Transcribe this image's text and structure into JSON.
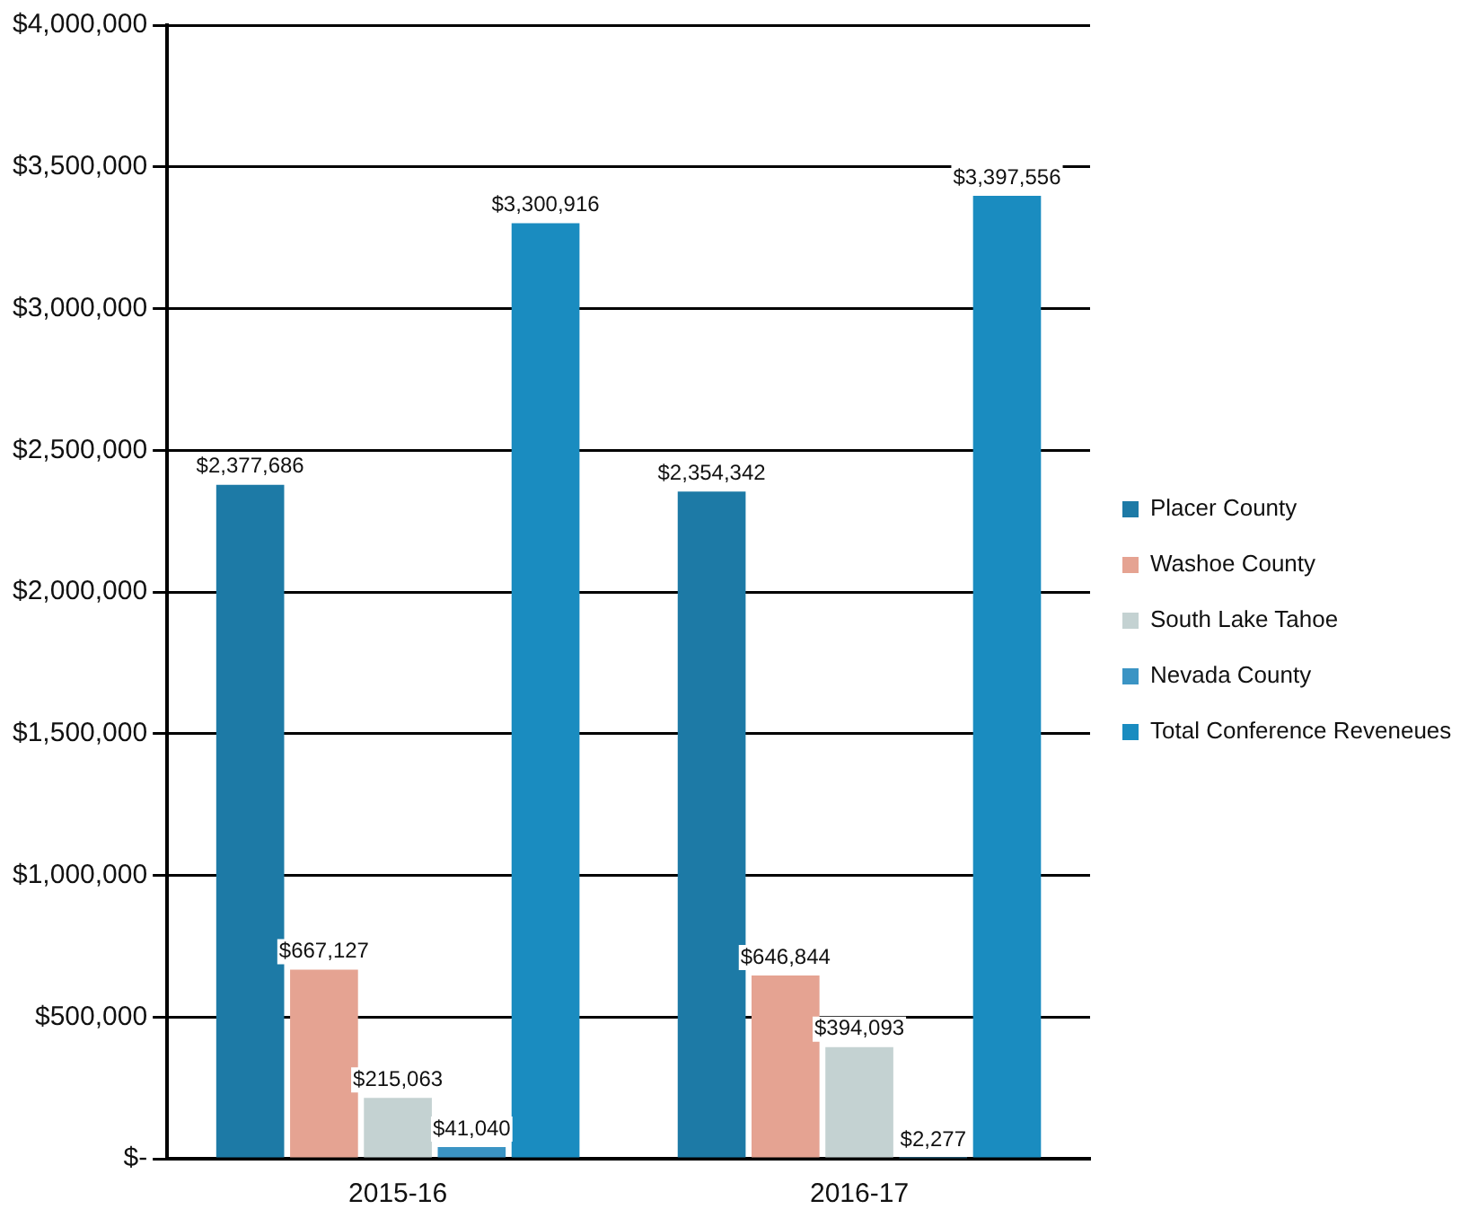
{
  "chart_data": {
    "type": "bar",
    "categories": [
      "2015-16",
      "2016-17"
    ],
    "series": [
      {
        "name": "Placer County",
        "color": "#1d7aa6",
        "values": [
          2377686,
          2354342
        ],
        "value_labels": [
          "$2,377,686",
          "$2,354,342"
        ]
      },
      {
        "name": "Washoe County",
        "color": "#e5a392",
        "values": [
          667127,
          646844
        ],
        "value_labels": [
          "$667,127",
          "$646,844"
        ]
      },
      {
        "name": "South Lake Tahoe",
        "color": "#c4d2d2",
        "values": [
          215063,
          394093
        ],
        "value_labels": [
          "$215,063",
          "$394,093"
        ]
      },
      {
        "name": "Nevada County",
        "color": "#3b94c4",
        "values": [
          41040,
          2277
        ],
        "value_labels": [
          "$41,040",
          "$2,277"
        ]
      },
      {
        "name": "Total Conference Reveneues",
        "color": "#1a8cc0",
        "values": [
          3300916,
          3397556
        ],
        "value_labels": [
          "$3,300,916",
          "$3,397,556"
        ]
      }
    ],
    "ylim": [
      0,
      4000000
    ],
    "yticks": [
      {
        "value": 0,
        "label": "$-"
      },
      {
        "value": 500000,
        "label": "$500,000"
      },
      {
        "value": 1000000,
        "label": "$1,000,000"
      },
      {
        "value": 1500000,
        "label": "$1,500,000"
      },
      {
        "value": 2000000,
        "label": "$2,000,000"
      },
      {
        "value": 2500000,
        "label": "$2,500,000"
      },
      {
        "value": 3000000,
        "label": "$3,000,000"
      },
      {
        "value": 3500000,
        "label": "$3,500,000"
      },
      {
        "value": 4000000,
        "label": "$4,000,000"
      }
    ],
    "grid": "y",
    "legend": "right"
  }
}
